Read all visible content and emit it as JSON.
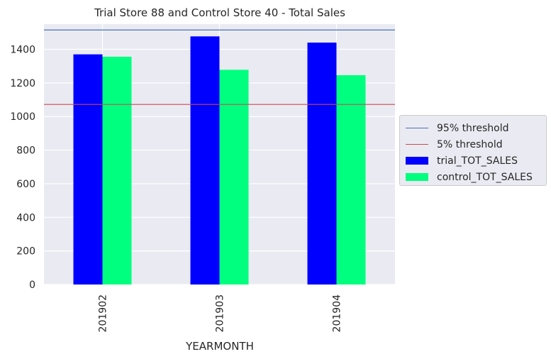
{
  "chart_data": {
    "type": "bar",
    "title": "Trial Store 88 and Control Store 40 - Total Sales",
    "xlabel": "YEARMONTH",
    "ylabel": "",
    "categories": [
      "201902",
      "201903",
      "201904"
    ],
    "series": [
      {
        "name": "trial_TOT_SALES",
        "values": [
          1370,
          1477,
          1440
        ],
        "color": "#0000ff"
      },
      {
        "name": "control_TOT_SALES",
        "values": [
          1356,
          1278,
          1246
        ],
        "color": "#00ff7f"
      }
    ],
    "reference_lines": [
      {
        "name": "95% threshold",
        "value": 1515,
        "color": "#4c72b0"
      },
      {
        "name": "5% threshold",
        "value": 1072,
        "color": "#c44e52"
      }
    ],
    "ylim": [
      0,
      1550
    ],
    "yticks": [
      "0",
      "200",
      "400",
      "600",
      "800",
      "1000",
      "1200",
      "1400"
    ],
    "grid": true,
    "legend_position": "center-left outside right"
  }
}
